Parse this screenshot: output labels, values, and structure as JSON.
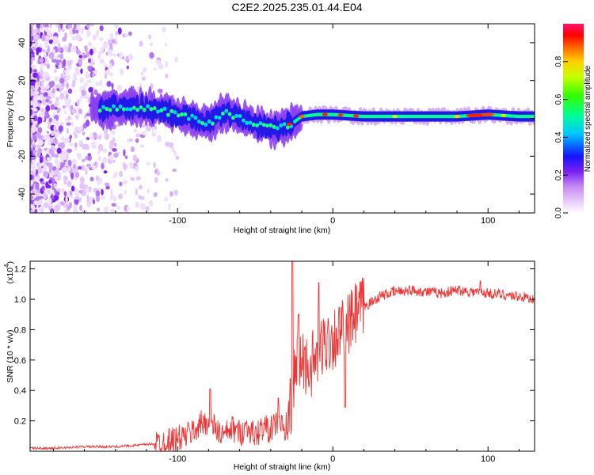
{
  "title": "C2E2.2025.235.01.44.E04",
  "chart_data": [
    {
      "type": "heatmap",
      "name": "spectrogram",
      "xlabel": "Height of straight line (km)",
      "ylabel": "Frequency (Hz)",
      "xlim": [
        -195,
        130
      ],
      "ylim": [
        -50,
        50
      ],
      "xticks": [
        -100,
        0,
        100
      ],
      "xtick_labels": [
        "-100",
        "0",
        "100"
      ],
      "yticks": [
        -40,
        -20,
        0,
        20,
        40
      ],
      "ytick_labels": [
        "-40",
        "-20",
        "0",
        "20",
        "40"
      ],
      "ridge": {
        "x": [
          -150,
          -130,
          -115,
          -100,
          -90,
          -80,
          -70,
          -60,
          -50,
          -40,
          -33,
          -25,
          -20,
          -10,
          0,
          20,
          40,
          60,
          80,
          100,
          120,
          130
        ],
        "y": [
          5,
          6,
          5,
          2,
          0,
          -3,
          3,
          0,
          -3,
          -5,
          -5,
          -2,
          1,
          2,
          2,
          1,
          1,
          1,
          1,
          2,
          1,
          1
        ]
      },
      "colorbar": {
        "label": "Normalized spectral amplitude",
        "range": [
          0.0,
          1.0
        ],
        "ticks": [
          0.0,
          0.2,
          0.4,
          0.6,
          0.8
        ],
        "tick_labels": [
          "0.0",
          "0.2",
          "0.4",
          "0.6",
          "0.8"
        ]
      }
    },
    {
      "type": "line",
      "name": "snr",
      "xlabel": "Height of straight line (km)",
      "ylabel": "SNR (10 * v/v)",
      "y_multiplier": "(x10",
      "y_multiplier_exp": "4",
      "y_multiplier_close": ")",
      "color": "#ee3333",
      "xlim": [
        -195,
        130
      ],
      "ylim": [
        0,
        1.25
      ],
      "xticks": [
        -100,
        0,
        100
      ],
      "xtick_labels": [
        "-100",
        "0",
        "100"
      ],
      "yticks": [
        0.2,
        0.4,
        0.6,
        0.8,
        1.0,
        1.2
      ],
      "ytick_labels": [
        "0.2",
        "0.4",
        "0.6",
        "0.8",
        "1.0",
        "1.2"
      ],
      "x": [
        -195,
        -180,
        -160,
        -140,
        -125,
        -115,
        -105,
        -95,
        -90,
        -85,
        -80,
        -75,
        -70,
        -65,
        -60,
        -55,
        -50,
        -45,
        -40,
        -35,
        -32,
        -30,
        -28,
        -26,
        -24,
        -20,
        -15,
        -10,
        -5,
        0,
        5,
        10,
        15,
        20,
        25,
        30,
        40,
        50,
        60,
        70,
        80,
        90,
        100,
        110,
        120,
        130
      ],
      "y": [
        0.02,
        0.02,
        0.03,
        0.03,
        0.04,
        0.05,
        0.07,
        0.1,
        0.13,
        0.18,
        0.2,
        0.14,
        0.1,
        0.15,
        0.12,
        0.16,
        0.1,
        0.16,
        0.14,
        0.2,
        0.15,
        0.1,
        0.25,
        0.4,
        0.55,
        0.6,
        0.55,
        0.62,
        0.72,
        0.75,
        0.78,
        0.82,
        0.9,
        0.95,
        0.98,
        1.02,
        1.05,
        1.06,
        1.05,
        1.04,
        1.06,
        1.05,
        1.04,
        1.03,
        1.02,
        1.0
      ],
      "spikes": [
        {
          "x": -79,
          "y": 0.41
        },
        {
          "x": -35,
          "y": 0.35
        },
        {
          "x": -26,
          "y": 1.25
        },
        {
          "x": -22,
          "y": 0.9
        },
        {
          "x": -9,
          "y": 1.11
        },
        {
          "x": 8,
          "y": 0.29
        },
        {
          "x": 95,
          "y": 1.12
        }
      ]
    }
  ]
}
